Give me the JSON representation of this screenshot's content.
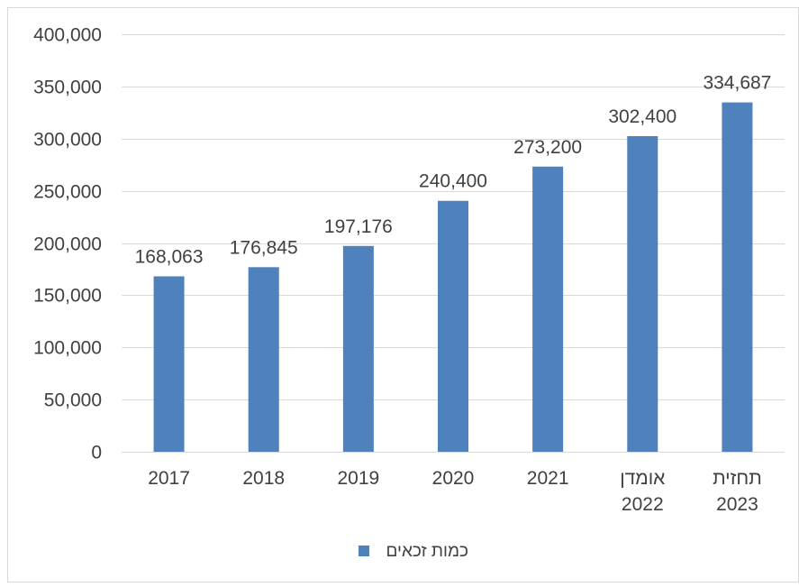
{
  "chart_data": {
    "type": "bar",
    "title": "",
    "xlabel": "",
    "ylabel": "",
    "categories": [
      [
        "2017"
      ],
      [
        "2018"
      ],
      [
        "2019"
      ],
      [
        "2020"
      ],
      [
        "2021"
      ],
      [
        "אומדן",
        "2022"
      ],
      [
        "תחזית",
        "2023"
      ]
    ],
    "series": [
      {
        "name": "כמות זכאים",
        "color": "#4f81bd",
        "values": [
          168063,
          176845,
          197176,
          240400,
          273200,
          302400,
          334687
        ],
        "labels": [
          "168,063",
          "176,845",
          "197,176",
          "240,400",
          "273,200",
          "302,400",
          "334,687"
        ]
      }
    ],
    "ylim": [
      0,
      400000
    ],
    "yticks": [
      0,
      50000,
      100000,
      150000,
      200000,
      250000,
      300000,
      350000,
      400000
    ],
    "ytick_labels": [
      "0",
      "50,000",
      "100,000",
      "150,000",
      "200,000",
      "250,000",
      "300,000",
      "350,000",
      "400,000"
    ],
    "grid": true,
    "legend_position": "bottom"
  }
}
